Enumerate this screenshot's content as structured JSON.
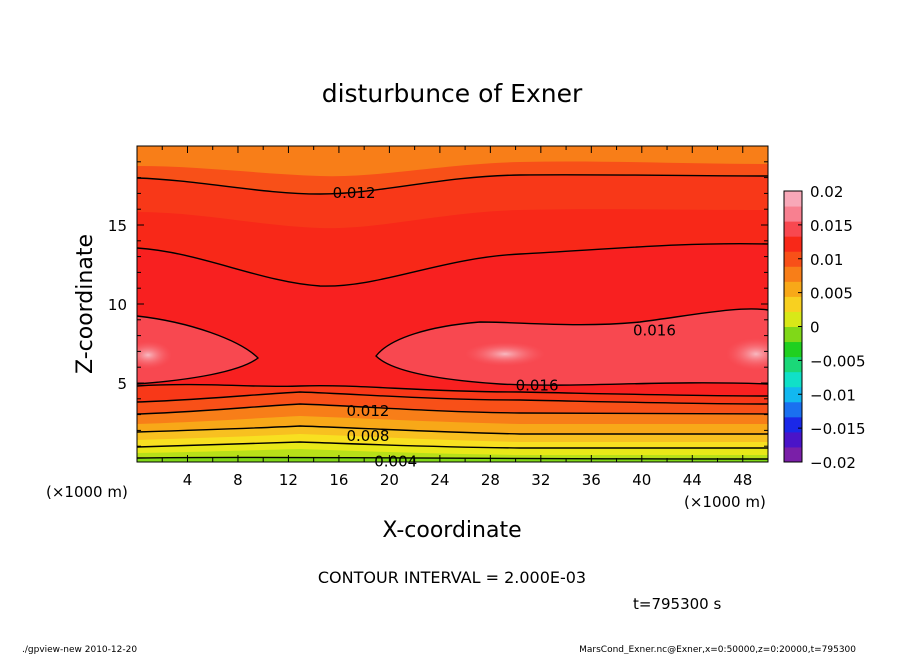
{
  "chart_data": {
    "type": "contour",
    "title": "disturbunce of Exner",
    "xlabel": "X-coordinate",
    "ylabel": "Z-coordinate",
    "x_unit": "(×1000 m)",
    "y_unit": "(×1000 m)",
    "xlim": [
      0,
      50
    ],
    "ylim": [
      0,
      20
    ],
    "x_ticks": [
      4,
      8,
      12,
      16,
      20,
      24,
      28,
      32,
      36,
      40,
      44,
      48
    ],
    "y_ticks": [
      5,
      10,
      15
    ],
    "contour_interval_text": "CONTOUR INTERVAL = 2.000E-03",
    "time_text": "t=795300 s",
    "contour_labels": [
      {
        "text": "0.012",
        "x": 17.2,
        "z": 17.1
      },
      {
        "text": "0.016",
        "x": 41.0,
        "z": 8.4
      },
      {
        "text": "0.016",
        "x": 31.7,
        "z": 4.9
      },
      {
        "text": "0.012",
        "x": 18.3,
        "z": 3.3
      },
      {
        "text": "0.008",
        "x": 18.3,
        "z": 1.7
      },
      {
        "text": "0.004",
        "x": 20.5,
        "z": 0.1
      }
    ],
    "colorbar": {
      "min": -0.02,
      "max": 0.02,
      "tick_labels": [
        "0.02",
        "0.015",
        "0.01",
        "0.005",
        "0",
        "−0.005",
        "−0.01",
        "−0.015",
        "−0.02"
      ],
      "tick_values": [
        0.02,
        0.015,
        0.01,
        0.005,
        0,
        -0.005,
        -0.01,
        -0.015,
        -0.02
      ],
      "colors": [
        "#7a1fa8",
        "#4a14c8",
        "#1a28e8",
        "#1a70f0",
        "#12b8f0",
        "#10e0c8",
        "#1ad878",
        "#20d020",
        "#80d818",
        "#d8e818",
        "#f8d020",
        "#f8a818",
        "#f87e18",
        "#f85018",
        "#f82818",
        "#f84850",
        "#f88090",
        "#f8a8b8"
      ]
    }
  },
  "footer": {
    "left": "./gpview-new  2010-12-20",
    "right": "MarsCond_Exner.nc@Exner,x=0:50000,z=0:20000,t=795300"
  }
}
